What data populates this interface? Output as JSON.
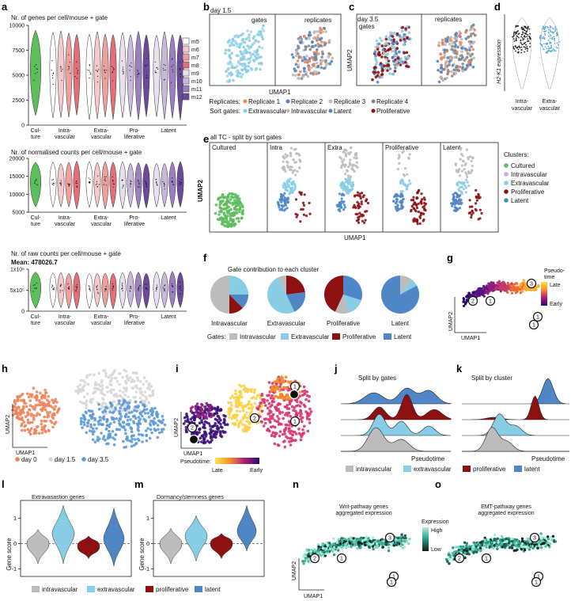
{
  "panel_letters": [
    "a",
    "b",
    "c",
    "d",
    "e",
    "f",
    "g",
    "h",
    "i",
    "j",
    "k",
    "l",
    "m",
    "n",
    "o"
  ],
  "colors": {
    "culture": "#5cbf5c",
    "m5": "#ffffff",
    "m6": "#f5c9c9",
    "m7": "#ee9f9f",
    "m8": "#e46f78",
    "m9": "#e8e0ec",
    "m10": "#c9b8d9",
    "m11": "#9b7fbf",
    "m12": "#6b4a9c",
    "intravascular": "#bcbcbc",
    "extravascular": "#88cde6",
    "proliferative": "#8e1111",
    "latent": "#4f86c6",
    "cultured": "#5dbb5d",
    "day0": "#f0845a",
    "day1_5": "#d7d7d7",
    "day3_5": "#5e9bd6",
    "rep1": "#f0845a",
    "rep2": "#4f86c6",
    "rep3": "#bcbcbc",
    "rep4": "#8a8a8a"
  },
  "panel_a": {
    "legend": [
      "m5",
      "m6",
      "m7",
      "m8",
      "m9",
      "m10",
      "m11",
      "m12"
    ],
    "group_labels": [
      [
        "Cul-",
        "ture"
      ],
      [
        "Intra-",
        "vascular"
      ],
      [
        "Extra-",
        "vascular"
      ],
      [
        "Pro-",
        "liferative"
      ],
      [
        "Latent",
        ""
      ]
    ],
    "charts": [
      {
        "title": "Nr. of genes per cell/mouse + gate",
        "subtitle": "",
        "yticks": [
          "10000",
          "7500",
          "5000",
          "2500",
          "0"
        ],
        "ylim": [
          0,
          10000
        ]
      },
      {
        "title": "Nr. of normalised counts per cell/mouse + gate",
        "subtitle": "",
        "yticks": [
          "20000",
          "15000",
          "10000",
          "5000"
        ],
        "ylim": [
          5000,
          20000
        ]
      },
      {
        "title": "Nr. of raw counts per cell/mouse + gate",
        "subtitle": "Mean: 478026.7",
        "yticks": [
          "1x10⁶",
          "5x10⁵",
          "0"
        ],
        "ylim": [
          0,
          1200000
        ]
      }
    ]
  },
  "panel_b": {
    "day": "day 1.5",
    "left_title": "gates",
    "right_title": "replicates",
    "xlabel": "UMAP1",
    "ylabel": "UMAP2"
  },
  "panel_c": {
    "day": "day 3.5",
    "left_title": "gates",
    "right_title": "replicates",
    "ylabel": "UMAP2"
  },
  "legend_bc": {
    "replicates_label": "Replicates:",
    "replicates": [
      "Replicate 1",
      "Replicate 2",
      "Replicate 3",
      "Replicate 4"
    ],
    "gates_label": "Sort gates:",
    "gates": [
      "Extravascular",
      "Intravascular",
      "Latent",
      "Proliferative"
    ]
  },
  "panel_d": {
    "ylabel": "H2-K1 expression",
    "xlabels": [
      "Intra-",
      "vascular",
      "Extra-",
      "vascular"
    ]
  },
  "panel_e": {
    "title": "all TC - split by sort gates",
    "facets": [
      "Cultured",
      "Intra",
      "Extra",
      "Proliferative",
      "Latent"
    ],
    "xlabel": "UMAP1",
    "ylabel": "UMAP2",
    "legend_title": "Clusters:",
    "legend": [
      "Cultured",
      "Intravascular",
      "Extravascular",
      "Proliferative",
      "Latent"
    ]
  },
  "panel_f": {
    "title": "Gate contribution to each cluster",
    "pies": [
      {
        "label": "Intravascular",
        "slices": [
          {
            "gate": "Extravascular",
            "value": 0.25
          },
          {
            "gate": "Latent",
            "value": 0.125
          },
          {
            "gate": "Proliferative",
            "value": 0.125
          },
          {
            "gate": "Intravascular",
            "value": 0.5
          }
        ]
      },
      {
        "label": "Extravascular",
        "slices": [
          {
            "gate": "Proliferative",
            "value": 0.23
          },
          {
            "gate": "Latent",
            "value": 0.2
          },
          {
            "gate": "Extravascular",
            "value": 0.5
          },
          {
            "gate": "Intravascular",
            "value": 0.07
          }
        ]
      },
      {
        "label": "Proliferative",
        "slices": [
          {
            "gate": "Latent",
            "value": 0.3
          },
          {
            "gate": "Extravascular",
            "value": 0.15
          },
          {
            "gate": "Intravascular",
            "value": 0.12
          },
          {
            "gate": "Proliferative",
            "value": 0.43
          }
        ]
      },
      {
        "label": "Latent",
        "slices": [
          {
            "gate": "Intravascular",
            "value": 0.1
          },
          {
            "gate": "Extravascular",
            "value": 0.07
          },
          {
            "gate": "Latent",
            "value": 0.83
          }
        ]
      }
    ],
    "gates_label": "Gates:",
    "gates": [
      "Intravascular",
      "Extravascular",
      "Proliferative",
      "Latent"
    ]
  },
  "panel_g": {
    "legend_title": [
      "Pseudo-",
      "time"
    ],
    "high": "Late",
    "low": "Early",
    "xlabel": "UMAP1",
    "ylabel": "UMAP2",
    "nodes": [
      "1",
      "1",
      "1",
      "2",
      "3"
    ]
  },
  "panel_h": {
    "xlabel": "UMAP1",
    "ylabel": "UMAP2",
    "legend": [
      "day 0",
      "day 1.5",
      "day 3.5"
    ]
  },
  "panel_i": {
    "xlabel": "UMAP1",
    "ylabel": "UMAP2",
    "legend_title": "Pseudotime:",
    "late": "Late",
    "early": "Early",
    "nodes": [
      "1",
      "1",
      "1",
      "2",
      "2",
      "1"
    ]
  },
  "panel_j": {
    "title": "Split by gates",
    "xlabel": "Pseudotime"
  },
  "panel_k": {
    "title": "Split by cluster",
    "xlabel": "Pseudotime"
  },
  "legend_jk": [
    "intravascular",
    "extravascular",
    "proliferative",
    "latent"
  ],
  "panel_l": {
    "title": "Extravasastion genes",
    "ylabel": "Gene score",
    "yticks": [
      "1",
      "0",
      "-1"
    ],
    "ylim": [
      -1.3,
      1.7
    ]
  },
  "panel_m": {
    "title": "Dormancy/stemness genes",
    "ylabel": "Gene score",
    "yticks": [
      "1",
      "0",
      "-1"
    ],
    "ylim": [
      -1.3,
      1.7
    ]
  },
  "legend_lm": [
    "intravascular",
    "extravascular",
    "proliferative",
    "latent"
  ],
  "panel_n": {
    "title1": "Wnt-pathway genes",
    "title2": "aggregated expression",
    "xlabel": "UMAP1",
    "ylabel": "UMAP2",
    "nodes": [
      "1",
      "1",
      "1",
      "2",
      "3"
    ]
  },
  "panel_o": {
    "title1": "EMT-pathway genes",
    "title2": "aggregated expression",
    "nodes": [
      "1",
      "1",
      "1",
      "2",
      "3"
    ]
  },
  "expression_legend": {
    "title": "Expression",
    "high": "High",
    "low": "Low"
  }
}
